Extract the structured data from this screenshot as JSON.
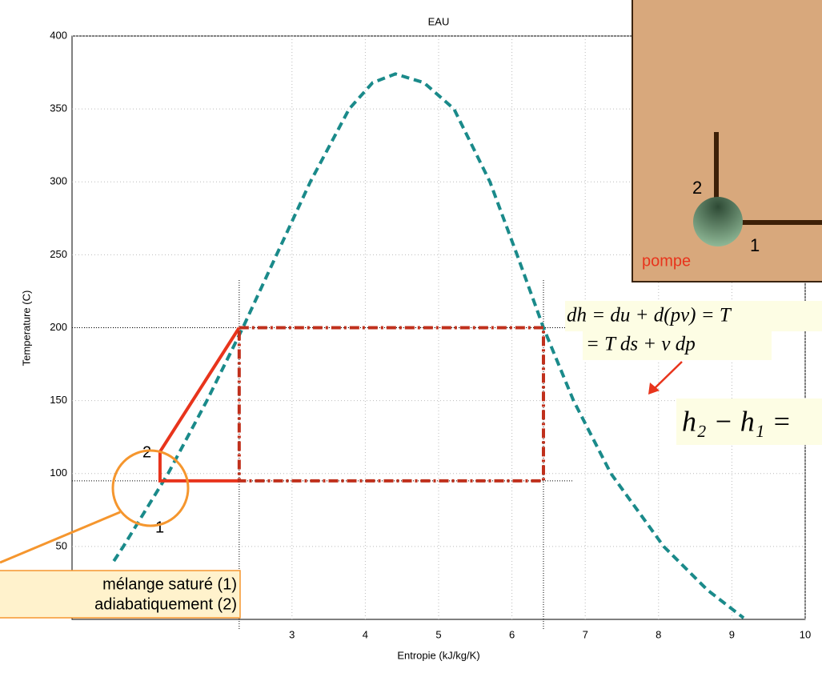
{
  "chart_data": {
    "type": "line",
    "title": "EAU",
    "xlabel": "Entropie (kJ/kg/K)",
    "ylabel": "Temperature (C)",
    "xlim": [
      0,
      10
    ],
    "ylim": [
      0,
      400
    ],
    "xticks": [
      3,
      4,
      5,
      6,
      7,
      8,
      9,
      10
    ],
    "yticks": [
      50,
      100,
      150,
      200,
      250,
      300,
      350,
      400
    ],
    "grid": true,
    "series": [
      {
        "color": "#1a8a8a",
        "style": "dashed",
        "x": [
          0.57,
          0.7,
          1.31,
          1.84,
          2.33,
          2.79,
          3.25,
          3.78,
          4.1,
          4.41,
          4.8,
          5.21,
          5.7,
          6.07,
          6.43,
          6.84,
          7.35,
          8.07,
          8.67,
          9.16
        ],
        "values": [
          40,
          50,
          100,
          150,
          200,
          250,
          300,
          350,
          368,
          374,
          368,
          350,
          300,
          250,
          200,
          150,
          100,
          50,
          20,
          1
        ]
      },
      {
        "color": "#e8341c",
        "style": "solid",
        "x": [
          2.28,
          1.2,
          1.2,
          2.28
        ],
        "values": [
          200,
          115,
          95,
          95
        ]
      },
      {
        "color": "#c0301c",
        "style": "dashdot",
        "x": [
          2.28,
          6.43,
          6.43,
          2.28,
          2.28
        ],
        "values": [
          200,
          200,
          95,
          95,
          200
        ]
      }
    ],
    "point_labels": [
      "2",
      "1"
    ]
  },
  "panel": {
    "labels": [
      "2",
      "1",
      "pompe"
    ]
  },
  "equations": [
    "dh = du + d(pv) = T",
    "= T ds + v dp",
    "h₂ − h₁ ="
  ],
  "callout": [
    "mélange saturé (1)",
    "adiabatiquement (2)"
  ]
}
